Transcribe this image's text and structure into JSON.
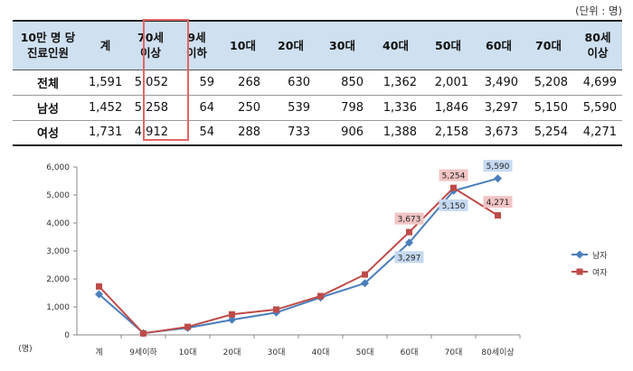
{
  "unit_note": "(단위 : 명)",
  "table": {
    "columns": [
      "10만 명 당\n진료인원",
      "계",
      "70세\n이상",
      "9세\n이하",
      "10대",
      "20대",
      "30대",
      "40대",
      "50대",
      "60대",
      "70대",
      "80세\n이상"
    ],
    "rows": [
      {
        "label": "전체",
        "values": [
          "1,591",
          "5,052",
          "59",
          "268",
          "630",
          "850",
          "1,362",
          "2,001",
          "3,490",
          "5,208",
          "4,699"
        ]
      },
      {
        "label": "남성",
        "values": [
          "1,452",
          "5,258",
          "64",
          "250",
          "539",
          "798",
          "1,336",
          "1,846",
          "3,297",
          "5,150",
          "5,590"
        ]
      },
      {
        "label": "여성",
        "values": [
          "1,731",
          "4,912",
          "54",
          "288",
          "733",
          "906",
          "1,388",
          "2,158",
          "3,673",
          "5,254",
          "4,271"
        ]
      }
    ]
  },
  "chart_data": {
    "type": "line",
    "categories": [
      "계",
      "9세이하",
      "10대",
      "20대",
      "30대",
      "40대",
      "50대",
      "60대",
      "70대",
      "80세이상"
    ],
    "series": [
      {
        "name": "남자",
        "color": "#4a7ebb",
        "marker": "diamond",
        "values": [
          1452,
          64,
          250,
          539,
          798,
          1336,
          1846,
          3297,
          5150,
          5590
        ]
      },
      {
        "name": "여자",
        "color": "#be4b48",
        "marker": "square",
        "values": [
          1731,
          54,
          288,
          733,
          906,
          1388,
          2158,
          3673,
          5254,
          4271
        ]
      }
    ],
    "ylim": [
      0,
      6000
    ],
    "yticks": [
      "0",
      "1,000",
      "2,000",
      "3,000",
      "4,000",
      "5,000",
      "6,000"
    ],
    "ylabel": "(명)",
    "grid": false,
    "legend": "right",
    "annotations": [
      {
        "series": 0,
        "index": 7,
        "text": "3,297"
      },
      {
        "series": 0,
        "index": 8,
        "text": "5,150"
      },
      {
        "series": 0,
        "index": 9,
        "text": "5,590"
      },
      {
        "series": 1,
        "index": 7,
        "text": "3,673"
      },
      {
        "series": 1,
        "index": 8,
        "text": "5,254"
      },
      {
        "series": 1,
        "index": 9,
        "text": "4,271"
      }
    ]
  }
}
